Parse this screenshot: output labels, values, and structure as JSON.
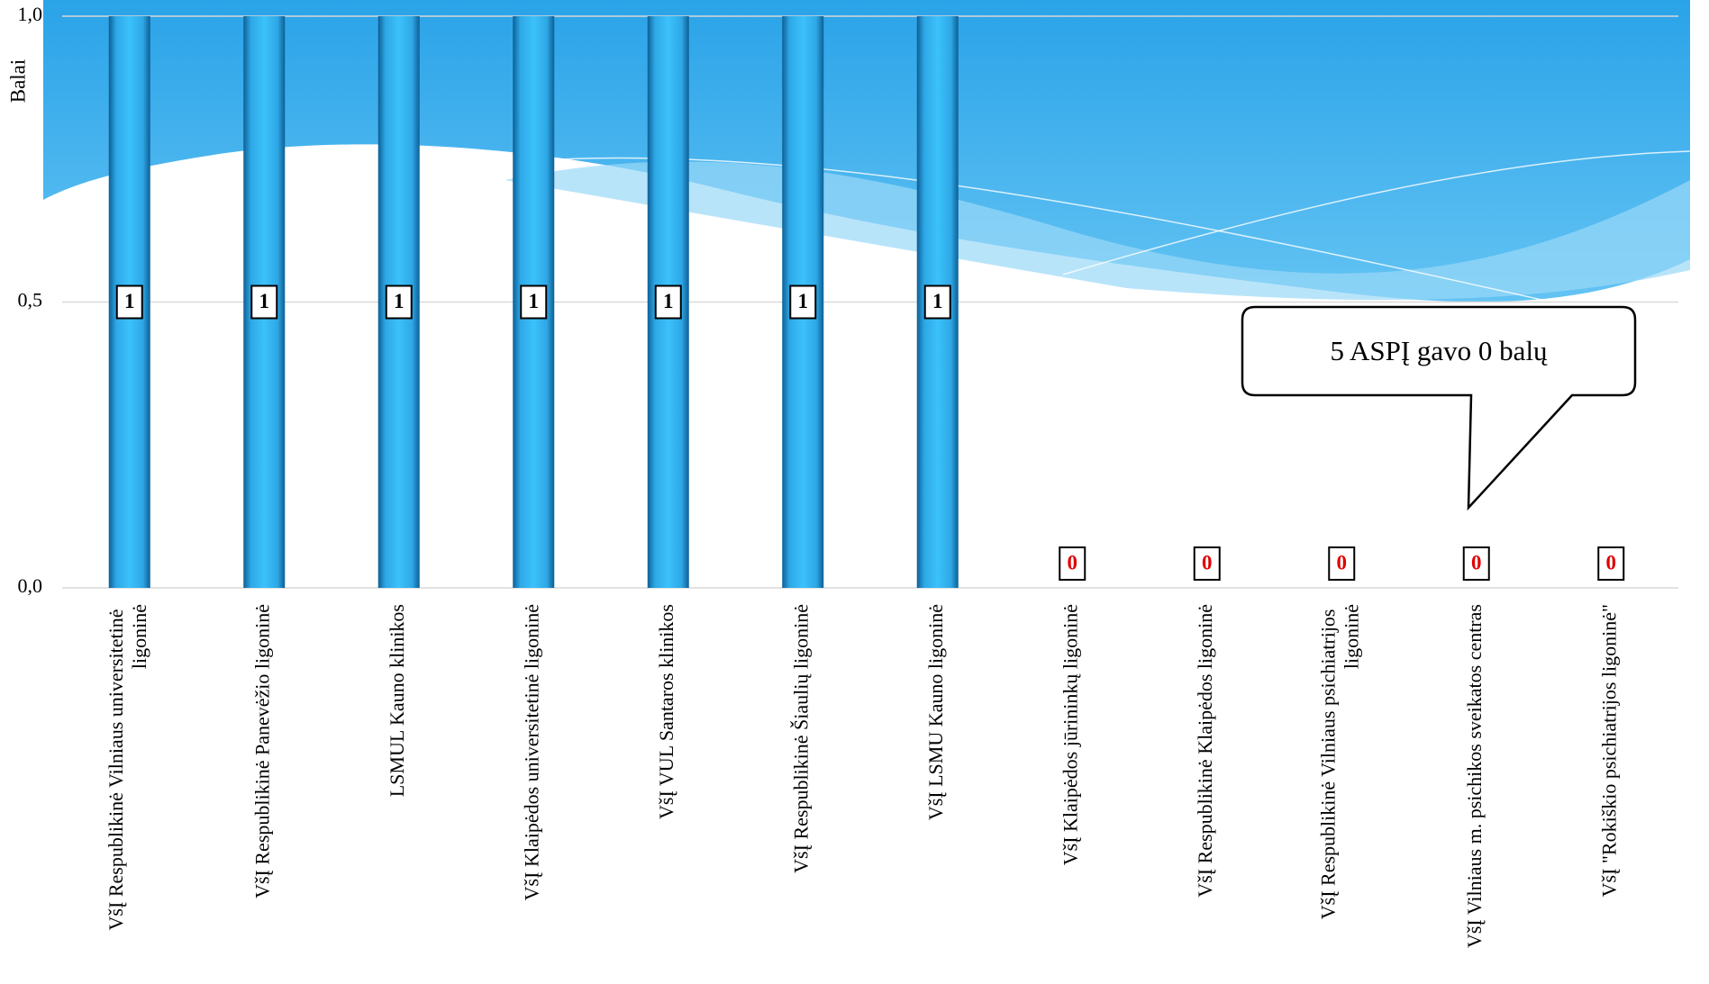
{
  "chart_data": {
    "type": "bar",
    "y_label": "Balai",
    "categories": [
      "VšĮ Respublikinė Vilniaus universitetinė ligoninė",
      "VšĮ Respublikinė Panevėžio ligoninė",
      "LSMUL Kauno klinikos",
      "VšĮ Klaipėdos universitetinė ligoninė",
      "VšĮ VUL Santaros klinikos",
      "VšĮ Respublikinė Šiaulių ligoninė",
      "VšĮ LSMU Kauno ligoninė",
      "VšĮ Klaipėdos jūrininkų ligoninė",
      "VšĮ Respublikinė Klaipėdos ligoninė",
      "VšĮ Respublikinė Vilniaus psichiatrijos ligoninė",
      "VšĮ Vilniaus m. psichikos sveikatos centras",
      "VšĮ \"Rokiškio psichiatrijos ligoninė\""
    ],
    "values": [
      1,
      1,
      1,
      1,
      1,
      1,
      1,
      0,
      0,
      0,
      0,
      0
    ],
    "color": "#33b5f0",
    "ylim": [
      0,
      1
    ],
    "yticks": [
      {
        "value": 0,
        "label": "0,0"
      },
      {
        "value": 0.5,
        "label": "0,5"
      },
      {
        "value": 1,
        "label": "1,0"
      }
    ],
    "grid": true,
    "annotation": "5 ASPĮ gavo 0 balų"
  }
}
